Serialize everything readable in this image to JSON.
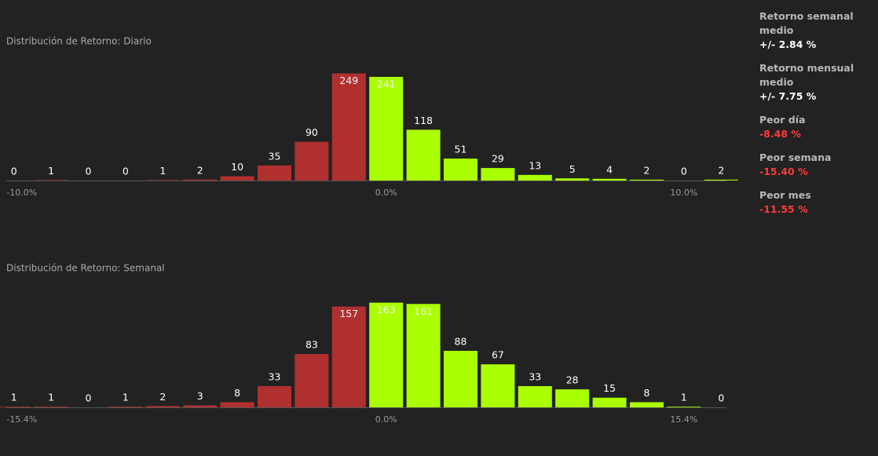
{
  "chart_data": [
    {
      "type": "bar",
      "title": "Distribución de Retorno: Diario",
      "categories": [
        "-10.0%",
        null,
        null,
        null,
        null,
        null,
        null,
        null,
        null,
        null,
        "0.0%",
        null,
        null,
        null,
        null,
        null,
        null,
        null,
        "10.0%",
        null
      ],
      "values": [
        0,
        1,
        0,
        0,
        1,
        2,
        10,
        35,
        90,
        249,
        241,
        118,
        51,
        29,
        13,
        5,
        4,
        2,
        0,
        2
      ],
      "colors": [
        "#b03030",
        "#b03030",
        "#b03030",
        "#b03030",
        "#b03030",
        "#b03030",
        "#b03030",
        "#b03030",
        "#b03030",
        "#b03030",
        "#aaff00",
        "#aaff00",
        "#aaff00",
        "#aaff00",
        "#aaff00",
        "#aaff00",
        "#aaff00",
        "#aaff00",
        "#aaff00",
        "#aaff00"
      ],
      "ylim": [
        0,
        250
      ]
    },
    {
      "type": "bar",
      "title": "Distribución de Retorno: Semanal",
      "categories": [
        "-15.4%",
        null,
        null,
        null,
        null,
        null,
        null,
        null,
        null,
        null,
        "0.0%",
        null,
        null,
        null,
        null,
        null,
        null,
        null,
        "15.4%",
        null
      ],
      "values": [
        1,
        1,
        0,
        1,
        2,
        3,
        8,
        33,
        83,
        157,
        163,
        161,
        88,
        67,
        33,
        28,
        15,
        8,
        1,
        0
      ],
      "colors": [
        "#b03030",
        "#b03030",
        "#b03030",
        "#b03030",
        "#b03030",
        "#b03030",
        "#b03030",
        "#b03030",
        "#b03030",
        "#b03030",
        "#aaff00",
        "#aaff00",
        "#aaff00",
        "#aaff00",
        "#aaff00",
        "#aaff00",
        "#aaff00",
        "#aaff00",
        "#aaff00",
        "#aaff00"
      ],
      "ylim": [
        0,
        165
      ]
    }
  ],
  "stats": [
    {
      "label": "Retorno semanal medio",
      "value": "+/- 2.84 %",
      "color": "#ffffff"
    },
    {
      "label": "Retorno mensual medio",
      "value": "+/- 7.75 %",
      "color": "#ffffff"
    },
    {
      "label": "Peor día",
      "value": "-8.48 %",
      "color": "#ff3b3b"
    },
    {
      "label": "Peor semana",
      "value": "-15.40 %",
      "color": "#ff3b3b"
    },
    {
      "label": "Peor mes",
      "value": "-11.55 %",
      "color": "#ff3b3b"
    }
  ]
}
